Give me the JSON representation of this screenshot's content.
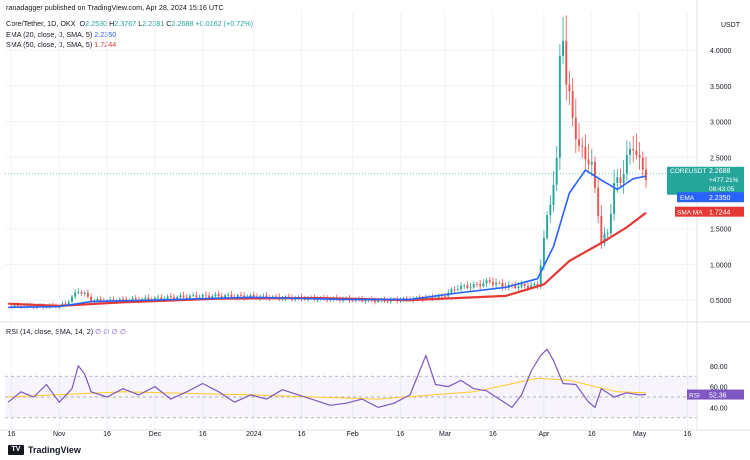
{
  "header": {
    "published": "ranadagger published on TradingView.com, Apr 28, 2024 15:16 UTC",
    "symbol": "Core/Tether, 1D, OKX",
    "ohlc": {
      "o_label": "O",
      "o": "2.2530",
      "h_label": "H",
      "h": "2.3767",
      "l_label": "L",
      "l": "2.2381",
      "c_label": "C",
      "c": "2.2688",
      "change": "+0.0162 (+0.72%)"
    },
    "ema_label": "EMA (20, close, 0, SMA, 5)",
    "ema_value": "2.2350",
    "sma_label": "SMA (50, close, 0, SMA, 5)",
    "sma_value": "1.7244"
  },
  "price_axis": {
    "unit": "USDT",
    "ticks": [
      "4.0000",
      "3.5000",
      "3.0000",
      "2.5000",
      "1.5000",
      "1.0000",
      "0.5000"
    ],
    "ticks_values": [
      4.0,
      3.5,
      3.0,
      2.5,
      1.5,
      1.0,
      0.5
    ]
  },
  "price_tags": {
    "symbol_tag": "COREUSDT",
    "price": "2.2688",
    "change_pct": "+477.21%",
    "countdown": "08:43:05",
    "ema_tag": "EMA",
    "ema_value": "2.2350",
    "sma_tag": "SMA:MA",
    "sma_value": "1.7244"
  },
  "rsi": {
    "label": "RSI (14, close, SMA, 14, 2)",
    "values_text": "52.36",
    "na_text": "∅ ∅ ∅ ∅",
    "ticks": [
      "80.00",
      "60.00",
      "40.00"
    ],
    "tick_values": [
      80,
      60,
      40
    ],
    "tag": "RSI",
    "tag_value": "52.36"
  },
  "time_axis": {
    "labels": [
      "16",
      "Nov",
      "16",
      "Dec",
      "16",
      "2024",
      "16",
      "Feb",
      "16",
      "Mar",
      "16",
      "Apr",
      "16",
      "May",
      "16"
    ],
    "days": [
      -15,
      0,
      15,
      30,
      45,
      61,
      76,
      92,
      107,
      121,
      136,
      152,
      167,
      182,
      197
    ]
  },
  "footer": {
    "brand": "TradingView",
    "logo": "TV"
  },
  "colors": {
    "up": "#26a69a",
    "down": "#ef5350",
    "ema": "#2962ff",
    "sma": "#e53935",
    "rsi": "#7e57c2",
    "rsi_ma": "#ffca28",
    "grid": "#f0f3fa"
  },
  "chart_data": [
    {
      "type": "candlestick",
      "title": "Core/Tether, 1D, OKX",
      "x_unit": "days since Nov 1, 2023",
      "ylim": [
        0.25,
        4.45
      ],
      "series": [
        {
          "name": "Price (close)",
          "points": [
            [
              -16,
              0.42
            ],
            [
              -10,
              0.41
            ],
            [
              -4,
              0.41
            ],
            [
              0,
              0.42
            ],
            [
              2,
              0.45
            ],
            [
              4,
              0.54
            ],
            [
              6,
              0.63
            ],
            [
              8,
              0.58
            ],
            [
              10,
              0.5
            ],
            [
              15,
              0.49
            ],
            [
              20,
              0.5
            ],
            [
              30,
              0.52
            ],
            [
              40,
              0.55
            ],
            [
              50,
              0.56
            ],
            [
              60,
              0.55
            ],
            [
              70,
              0.53
            ],
            [
              80,
              0.52
            ],
            [
              90,
              0.51
            ],
            [
              100,
              0.49
            ],
            [
              110,
              0.51
            ],
            [
              120,
              0.55
            ],
            [
              125,
              0.68
            ],
            [
              130,
              0.7
            ],
            [
              135,
              0.76
            ],
            [
              140,
              0.69
            ],
            [
              145,
              0.7
            ],
            [
              150,
              0.7
            ],
            [
              153,
              1.65
            ],
            [
              156,
              2.4
            ],
            [
              157,
              3.9
            ],
            [
              158,
              4.3
            ],
            [
              159,
              3.5
            ],
            [
              161,
              3.1
            ],
            [
              163,
              2.6
            ],
            [
              165,
              2.55
            ],
            [
              167,
              2.35
            ],
            [
              169,
              1.75
            ],
            [
              170,
              1.3
            ],
            [
              172,
              1.45
            ],
            [
              174,
              2.1
            ],
            [
              176,
              2.2
            ],
            [
              178,
              2.45
            ],
            [
              180,
              2.7
            ],
            [
              182,
              2.4
            ],
            [
              184,
              2.27
            ]
          ]
        },
        {
          "name": "EMA (20)",
          "points": [
            [
              -16,
              0.4
            ],
            [
              0,
              0.41
            ],
            [
              10,
              0.48
            ],
            [
              30,
              0.5
            ],
            [
              60,
              0.54
            ],
            [
              90,
              0.51
            ],
            [
              110,
              0.51
            ],
            [
              125,
              0.6
            ],
            [
              140,
              0.68
            ],
            [
              150,
              0.8
            ],
            [
              155,
              1.25
            ],
            [
              160,
              2.0
            ],
            [
              165,
              2.32
            ],
            [
              170,
              2.18
            ],
            [
              175,
              2.05
            ],
            [
              180,
              2.2
            ],
            [
              184,
              2.235
            ]
          ]
        },
        {
          "name": "SMA (50)",
          "points": [
            [
              -16,
              0.45
            ],
            [
              0,
              0.42
            ],
            [
              20,
              0.47
            ],
            [
              50,
              0.52
            ],
            [
              80,
              0.53
            ],
            [
              110,
              0.5
            ],
            [
              140,
              0.56
            ],
            [
              152,
              0.72
            ],
            [
              160,
              1.05
            ],
            [
              170,
              1.3
            ],
            [
              178,
              1.52
            ],
            [
              184,
              1.724
            ]
          ]
        }
      ]
    },
    {
      "type": "line",
      "title": "RSI (14, close, SMA, 14, 2)",
      "x_unit": "days since Nov 1, 2023",
      "ylim": [
        25,
        100
      ],
      "bands": [
        30,
        50,
        70
      ],
      "series": [
        {
          "name": "RSI",
          "points": [
            [
              -16,
              45
            ],
            [
              -12,
              55
            ],
            [
              -8,
              50
            ],
            [
              -4,
              62
            ],
            [
              0,
              45
            ],
            [
              4,
              58
            ],
            [
              6,
              80
            ],
            [
              8,
              72
            ],
            [
              10,
              55
            ],
            [
              15,
              50
            ],
            [
              20,
              58
            ],
            [
              25,
              52
            ],
            [
              30,
              60
            ],
            [
              35,
              48
            ],
            [
              40,
              55
            ],
            [
              45,
              63
            ],
            [
              50,
              55
            ],
            [
              55,
              45
            ],
            [
              60,
              52
            ],
            [
              65,
              48
            ],
            [
              70,
              57
            ],
            [
              75,
              52
            ],
            [
              80,
              47
            ],
            [
              85,
              42
            ],
            [
              90,
              44
            ],
            [
              95,
              48
            ],
            [
              100,
              40
            ],
            [
              105,
              44
            ],
            [
              110,
              52
            ],
            [
              115,
              90
            ],
            [
              118,
              62
            ],
            [
              122,
              60
            ],
            [
              126,
              66
            ],
            [
              130,
              58
            ],
            [
              134,
              56
            ],
            [
              138,
              48
            ],
            [
              142,
              40
            ],
            [
              145,
              52
            ],
            [
              148,
              75
            ],
            [
              151,
              90
            ],
            [
              153,
              96
            ],
            [
              155,
              85
            ],
            [
              158,
              63
            ],
            [
              162,
              62
            ],
            [
              166,
              45
            ],
            [
              168,
              40
            ],
            [
              170,
              58
            ],
            [
              174,
              50
            ],
            [
              178,
              54
            ],
            [
              182,
              52
            ],
            [
              184,
              52.36
            ]
          ]
        },
        {
          "name": "RSI-based MA",
          "points": [
            [
              -16,
              50
            ],
            [
              20,
              55
            ],
            [
              60,
              52
            ],
            [
              100,
              48
            ],
            [
              130,
              55
            ],
            [
              150,
              68
            ],
            [
              160,
              66
            ],
            [
              175,
              55
            ],
            [
              184,
              54
            ]
          ]
        }
      ]
    }
  ]
}
